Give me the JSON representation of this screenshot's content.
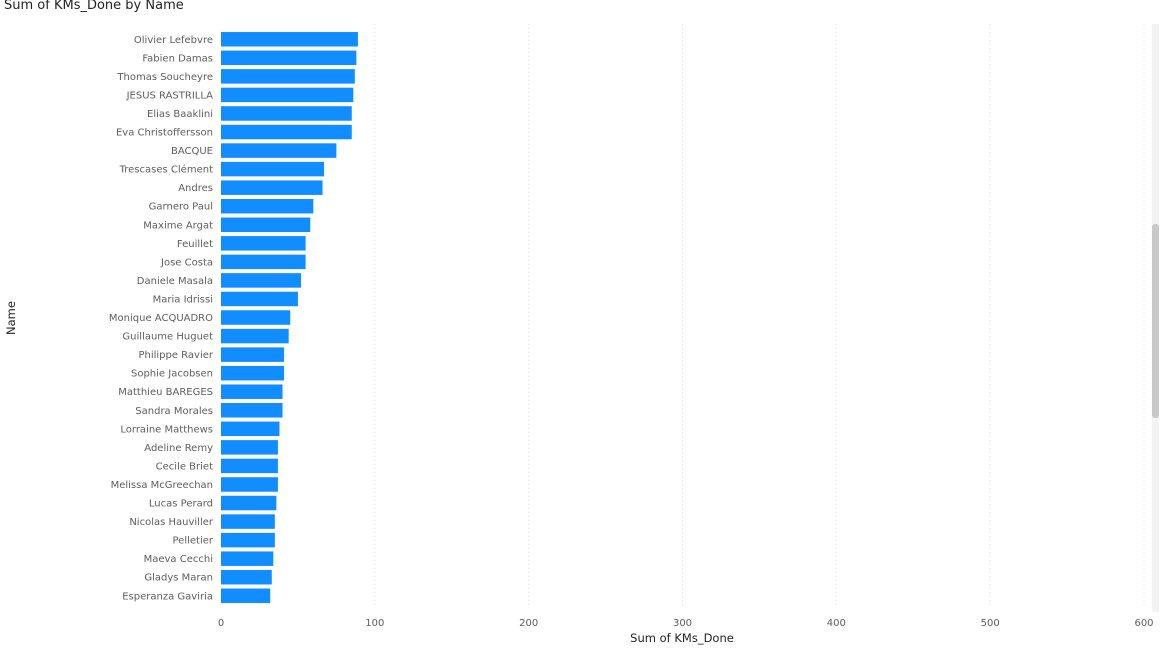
{
  "chart_data": {
    "type": "bar",
    "orientation": "horizontal",
    "title": "Sum of KMs_Done by Name",
    "xlabel": "Sum of KMs_Done",
    "ylabel": "Name",
    "xlim": [
      0,
      600
    ],
    "xticks": [
      "0",
      "100",
      "200",
      "300",
      "400",
      "500",
      "600"
    ],
    "grid": true,
    "bar_color": "#118DFF",
    "categories": [
      "Olivier Lefebvre",
      "Fabien Damas",
      "Thomas Soucheyre",
      "JESUS RASTRILLA",
      "Elias Baaklini",
      "Eva Christoffersson",
      "BACQUE",
      "Trescases Clément",
      "Andres",
      "Garnero Paul",
      "Maxime Argat",
      "Feuillet",
      "Jose Costa",
      "Daniele Masala",
      "Maria Idrissi",
      "Monique ACQUADRO",
      "Guillaume Huguet",
      "Philippe Ravier",
      "Sophie Jacobsen",
      "Matthieu BAREGES",
      "Sandra Morales",
      "Lorraine Matthews",
      "Adeline Remy",
      "Cecile Briet",
      "Melissa McGreechan",
      "Lucas Perard",
      "Nicolas Hauviller",
      "Pelletier",
      "Maeva Cecchi",
      "Gladys Maran",
      "Esperanza Gaviria"
    ],
    "values": [
      89,
      88,
      87,
      86,
      85,
      85,
      75,
      67,
      66,
      60,
      58,
      55,
      55,
      52,
      50,
      45,
      44,
      41,
      41,
      40,
      40,
      38,
      37,
      37,
      37,
      36,
      35,
      35,
      34,
      33,
      32
    ]
  },
  "scrollbar": {
    "position": 0.34,
    "visible_fraction": 0.33
  }
}
